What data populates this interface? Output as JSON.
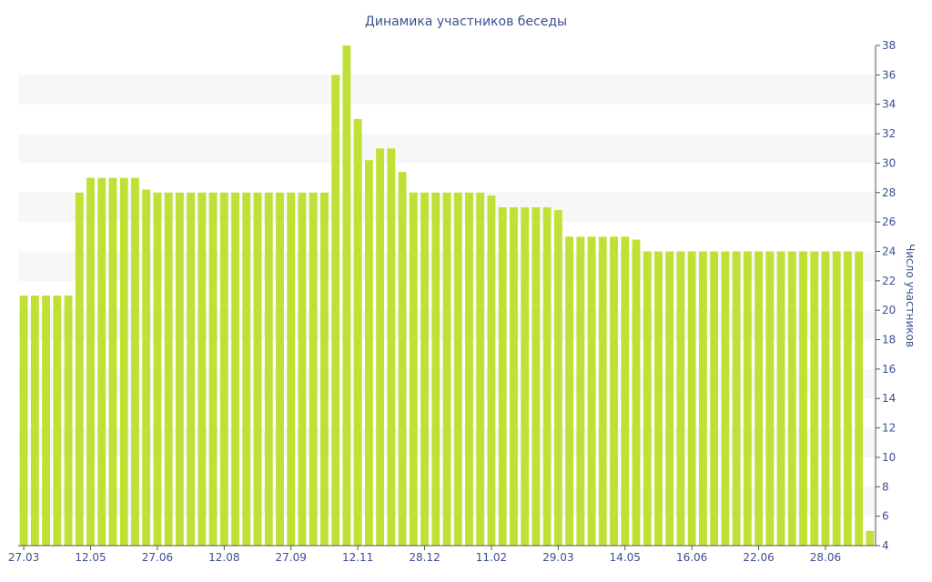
{
  "chart_data": {
    "type": "bar",
    "title": "Динамика участников беседы",
    "xlabel": "",
    "ylabel": "Число участников",
    "ylim": [
      4,
      38
    ],
    "y_ticks": [
      4,
      6,
      8,
      10,
      12,
      14,
      16,
      18,
      20,
      22,
      24,
      26,
      28,
      30,
      32,
      34,
      36,
      38
    ],
    "y_axis_side": "right",
    "x_tick_labels": [
      {
        "index": 0,
        "label": "27.03"
      },
      {
        "index": 6,
        "label": "12.05"
      },
      {
        "index": 12,
        "label": "27.06"
      },
      {
        "index": 18,
        "label": "12.08"
      },
      {
        "index": 24,
        "label": "27.09"
      },
      {
        "index": 30,
        "label": "12.11"
      },
      {
        "index": 36,
        "label": "28.12"
      },
      {
        "index": 42,
        "label": "11.02"
      },
      {
        "index": 48,
        "label": "29.03"
      },
      {
        "index": 54,
        "label": "14.05"
      },
      {
        "index": 60,
        "label": "16.06"
      },
      {
        "index": 66,
        "label": "22.06"
      },
      {
        "index": 72,
        "label": "28.06"
      }
    ],
    "values": [
      21,
      21,
      21,
      21,
      21,
      28,
      29,
      29,
      29,
      29,
      29,
      28.2,
      28,
      28,
      28,
      28,
      28,
      28,
      28,
      28,
      28,
      28,
      28,
      28,
      28,
      28,
      28,
      28,
      36,
      38,
      33,
      30.2,
      31,
      31,
      29.4,
      28,
      28,
      28,
      28,
      28,
      28,
      28,
      27.8,
      27,
      27,
      27,
      27,
      27,
      26.8,
      25,
      25,
      25,
      25,
      25,
      25,
      24.8,
      24,
      24,
      24,
      24,
      24,
      24,
      24,
      24,
      24,
      24,
      24,
      24,
      24,
      24,
      24,
      24,
      24,
      24,
      24,
      24,
      5
    ],
    "grid": true,
    "band_stripes": true,
    "colors": {
      "bar": "#bfe034",
      "text": "#3a4f8f",
      "stripe": "#f7f7f7",
      "axis": "#555555"
    }
  }
}
